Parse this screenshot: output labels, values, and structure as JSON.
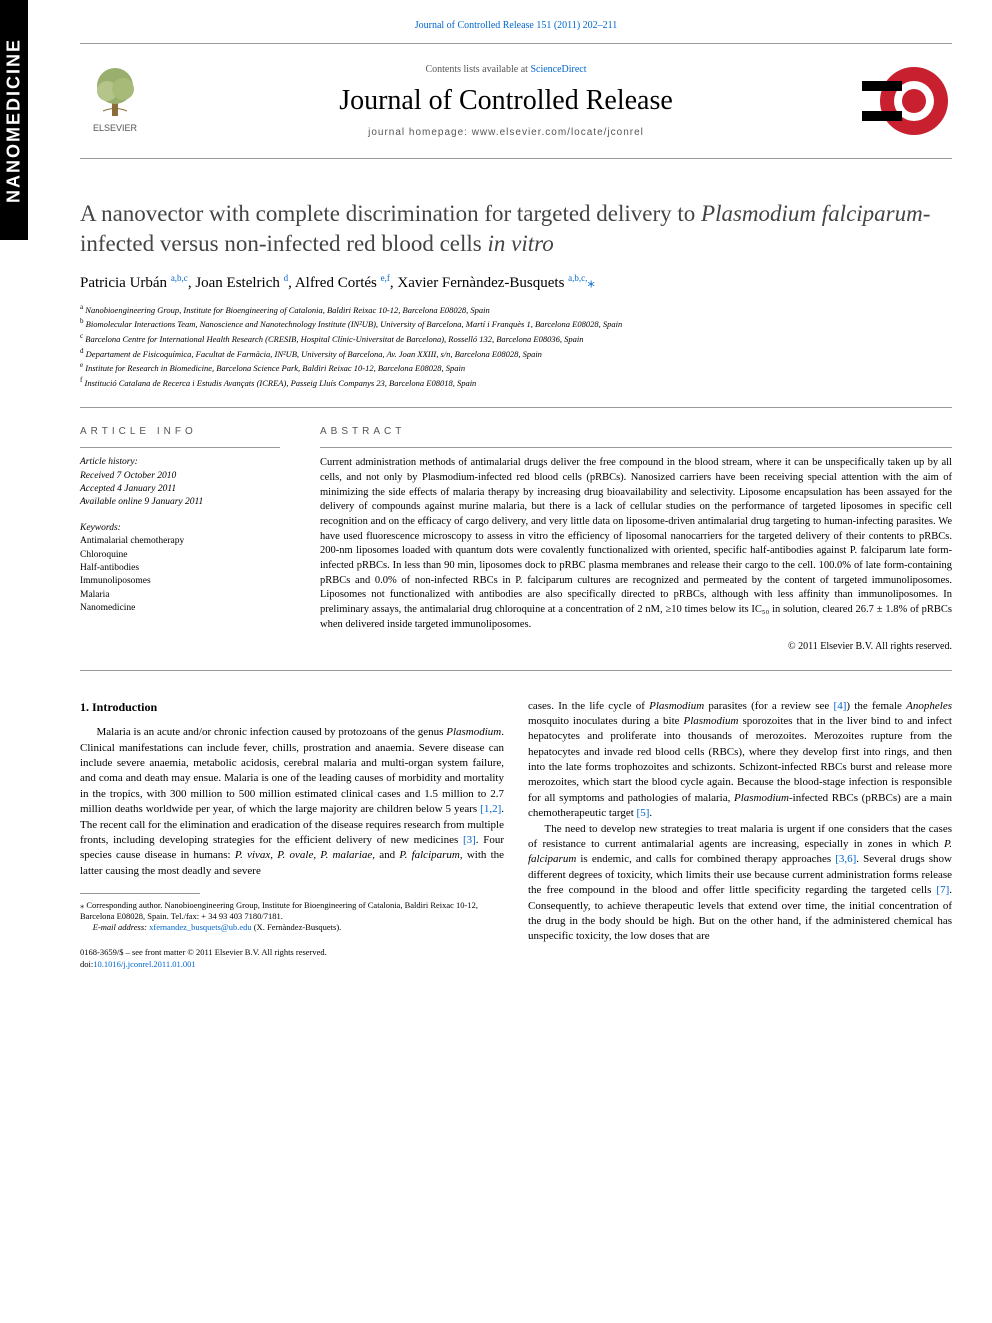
{
  "side_tab": "NANOMEDICINE",
  "top_citation": "Journal of Controlled Release 151 (2011) 202–211",
  "header": {
    "elsevier_label": "ELSEVIER",
    "contents_prefix": "Contents lists available at ",
    "contents_link": "ScienceDirect",
    "journal_name": "Journal of Controlled Release",
    "homepage_label": "journal homepage: www.elsevier.com/locate/jconrel"
  },
  "title_parts": {
    "p1": "A nanovector with complete discrimination for targeted delivery to ",
    "em1": "Plasmodium falciparum",
    "p2": "-infected versus non-infected red blood cells ",
    "em2": "in vitro"
  },
  "authors": [
    {
      "name": "Patricia Urbán",
      "aff": "a,b,c"
    },
    {
      "name": "Joan Estelrich",
      "aff": "d"
    },
    {
      "name": "Alfred Cortés",
      "aff": "e,f"
    },
    {
      "name": "Xavier Fernàndez-Busquets",
      "aff": "a,b,c,",
      "corr": true
    }
  ],
  "affiliations": [
    {
      "key": "a",
      "text": "Nanobioengineering Group, Institute for Bioengineering of Catalonia, Baldiri Reixac 10-12, Barcelona E08028, Spain"
    },
    {
      "key": "b",
      "text": "Biomolecular Interactions Team, Nanoscience and Nanotechnology Institute (IN²UB), University of Barcelona, Martí i Franquès 1, Barcelona E08028, Spain"
    },
    {
      "key": "c",
      "text": "Barcelona Centre for International Health Research (CRESIB, Hospital Clínic-Universitat de Barcelona), Rosselló 132, Barcelona E08036, Spain"
    },
    {
      "key": "d",
      "text": "Departament de Fisicoquímica, Facultat de Farmàcia, IN²UB, University of Barcelona, Av. Joan XXIII, s/n, Barcelona E08028, Spain"
    },
    {
      "key": "e",
      "text": "Institute for Research in Biomedicine, Barcelona Science Park, Baldiri Reixac 10-12, Barcelona E08028, Spain"
    },
    {
      "key": "f",
      "text": "Institució Catalana de Recerca i Estudis Avançats (ICREA), Passeig Lluís Companys 23, Barcelona E08018, Spain"
    }
  ],
  "info_labels": {
    "article_info": "ARTICLE INFO",
    "abstract": "ABSTRACT"
  },
  "history": {
    "header": "Article history:",
    "received": "Received 7 October 2010",
    "accepted": "Accepted 4 January 2011",
    "online": "Available online 9 January 2011"
  },
  "keywords": {
    "header": "Keywords:",
    "items": [
      "Antimalarial chemotherapy",
      "Chloroquine",
      "Half-antibodies",
      "Immunoliposomes",
      "Malaria",
      "Nanomedicine"
    ]
  },
  "abstract": "Current administration methods of antimalarial drugs deliver the free compound in the blood stream, where it can be unspecifically taken up by all cells, and not only by Plasmodium-infected red blood cells (pRBCs). Nanosized carriers have been receiving special attention with the aim of minimizing the side effects of malaria therapy by increasing drug bioavailability and selectivity. Liposome encapsulation has been assayed for the delivery of compounds against murine malaria, but there is a lack of cellular studies on the performance of targeted liposomes in specific cell recognition and on the efficacy of cargo delivery, and very little data on liposome-driven antimalarial drug targeting to human-infecting parasites. We have used fluorescence microscopy to assess in vitro the efficiency of liposomal nanocarriers for the targeted delivery of their contents to pRBCs. 200-nm liposomes loaded with quantum dots were covalently functionalized with oriented, specific half-antibodies against P. falciparum late form-infected pRBCs. In less than 90 min, liposomes dock to pRBC plasma membranes and release their cargo to the cell. 100.0% of late form-containing pRBCs and 0.0% of non-infected RBCs in P. falciparum cultures are recognized and permeated by the content of targeted immunoliposomes. Liposomes not functionalized with antibodies are also specifically directed to pRBCs, although with less affinity than immunoliposomes. In preliminary assays, the antimalarial drug chloroquine at a concentration of 2 nM, ≥10 times below its IC₅₀ in solution, cleared 26.7 ± 1.8% of pRBCs when delivered inside targeted immunoliposomes.",
  "copyright": "© 2011 Elsevier B.V. All rights reserved.",
  "intro_heading": "1. Introduction",
  "body_left_p1a": "Malaria is an acute and/or chronic infection caused by protozoans of the genus ",
  "body_left_p1_em1": "Plasmodium",
  "body_left_p1b": ". Clinical manifestations can include fever, chills, prostration and anaemia. Severe disease can include severe anaemia, metabolic acidosis, cerebral malaria and multi-organ system failure, and coma and death may ensue. Malaria is one of the leading causes of morbidity and mortality in the tropics, with 300 million to 500 million estimated clinical cases and 1.5 million to 2.7 million deaths worldwide per year, of which the large majority are children below 5 years ",
  "ref_12": "[1,2]",
  "body_left_p1c": ". The recent call for the elimination and eradication of the disease requires research from multiple fronts, including developing strategies for the efficient delivery of new medicines ",
  "ref_3": "[3]",
  "body_left_p1d": ". Four species cause disease in humans: ",
  "body_left_species": "P. vivax, P. ovale, P. malariae",
  "body_left_p1e": ", and ",
  "body_left_pfalc": "P. falciparum",
  "body_left_p1f": ", with the latter causing the most deadly and severe",
  "body_right_p1a": "cases. In the life cycle of ",
  "body_right_em1": "Plasmodium",
  "body_right_p1b": " parasites (for a review see ",
  "ref_4": "[4]",
  "body_right_p1c": ") the female ",
  "body_right_em2": "Anopheles",
  "body_right_p1d": " mosquito inoculates during a bite ",
  "body_right_em3": "Plasmodium",
  "body_right_p1e": " sporozoites that in the liver bind to and infect hepatocytes and proliferate into thousands of merozoites. Merozoites rupture from the hepatocytes and invade red blood cells (RBCs), where they develop first into rings, and then into the late forms trophozoites and schizonts. Schizont-infected RBCs burst and release more merozoites, which start the blood cycle again. Because the blood-stage infection is responsible for all symptoms and pathologies of malaria, ",
  "body_right_em4": "Plasmodium",
  "body_right_p1f": "-infected RBCs (pRBCs) are a main chemotherapeutic target ",
  "ref_5": "[5]",
  "body_right_p1g": ".",
  "body_right_p2a": "The need to develop new strategies to treat malaria is urgent if one considers that the cases of resistance to current antimalarial agents are increasing, especially in zones in which ",
  "body_right_p2_em1": "P. falciparum",
  "body_right_p2b": " is endemic, and calls for combined therapy approaches ",
  "ref_36": "[3,6]",
  "body_right_p2c": ". Several drugs show different degrees of toxicity, which limits their use because current administration forms release the free compound in the blood and offer little specificity regarding the targeted cells ",
  "ref_7": "[7]",
  "body_right_p2d": ". Consequently, to achieve therapeutic levels that extend over time, the initial concentration of the drug in the body should be high. But on the other hand, if the administered chemical has unspecific toxicity, the low doses that are",
  "corr_footnote": {
    "star": "⁎",
    "text": " Corresponding author. Nanobioengineering Group, Institute for Bioengineering of Catalonia, Baldiri Reixac 10-12, Barcelona E08028, Spain. Tel./fax: + 34 93 403 7180/7181.",
    "email_label": "E-mail address: ",
    "email": "xfernandez_busquets@ub.edu",
    "email_suffix": " (X. Fernàndez-Busquets)."
  },
  "footer": {
    "issn": "0168-3659/$ – see front matter © 2011 Elsevier B.V. All rights reserved.",
    "doi_label": "doi:",
    "doi": "10.1016/j.jconrel.2011.01.001"
  },
  "colors": {
    "link": "#0066cc",
    "rule": "#999999",
    "text": "#000000",
    "muted": "#555555",
    "logo_red": "#c8202f",
    "logo_orange": "#e87722"
  },
  "typography": {
    "body_font": "Georgia, 'Times New Roman', serif",
    "sans_font": "Arial, sans-serif",
    "title_fontsize": 23,
    "journal_fontsize": 28,
    "body_fontsize": 11,
    "abstract_fontsize": 10.5,
    "small_fontsize": 9
  }
}
